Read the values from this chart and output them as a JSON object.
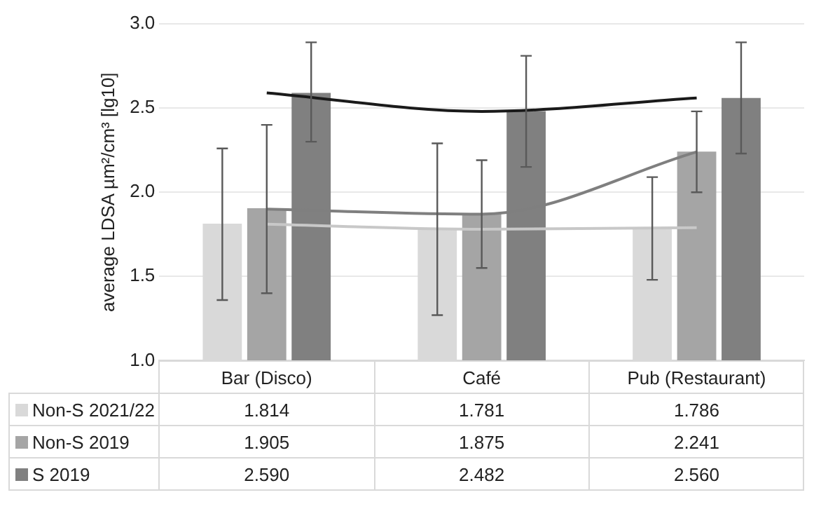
{
  "chart_data": {
    "type": "bar",
    "ylabel": "average LDSA µm²/cm³ [lg10]",
    "categories": [
      "Bar (Disco)",
      "Café",
      "Pub (Restaurant)"
    ],
    "series": [
      {
        "name": "Non-S 2021/22",
        "color": "#d9d9d9",
        "values": [
          1.814,
          1.781,
          1.786
        ],
        "value_labels": [
          "1.814",
          "1.781",
          "1.786"
        ],
        "errors": [
          [
            1.36,
            2.26
          ],
          [
            1.27,
            2.29
          ],
          [
            1.48,
            2.09
          ]
        ]
      },
      {
        "name": "Non-S 2019",
        "color": "#a5a5a5",
        "values": [
          1.905,
          1.875,
          2.241
        ],
        "value_labels": [
          "1.905",
          "1.875",
          "2.241"
        ],
        "errors": [
          [
            1.4,
            2.4
          ],
          [
            1.55,
            2.19
          ],
          [
            2.0,
            2.48
          ]
        ]
      },
      {
        "name": "S 2019",
        "color": "#808080",
        "values": [
          2.59,
          2.482,
          2.56
        ],
        "value_labels": [
          "2.590",
          "2.482",
          "2.560"
        ],
        "errors": [
          [
            2.3,
            2.89
          ],
          [
            2.15,
            2.81
          ],
          [
            2.23,
            2.89
          ]
        ]
      },
      {
        "type": "line",
        "color": "#c8c8c8",
        "values": [
          1.81,
          1.78,
          1.79
        ]
      },
      {
        "type": "line",
        "color": "#7f7f7f",
        "values": [
          1.9,
          1.87,
          2.24
        ]
      },
      {
        "type": "line",
        "color": "#1a1a1a",
        "values": [
          2.59,
          2.48,
          2.56
        ]
      }
    ],
    "ylim": [
      1.0,
      3.0
    ],
    "yticks": [
      {
        "value": 1.0,
        "label": "1.0"
      },
      {
        "value": 1.5,
        "label": "1.5"
      },
      {
        "value": 2.0,
        "label": "2.0"
      },
      {
        "value": 2.5,
        "label": "2.5"
      },
      {
        "value": 3.0,
        "label": "3.0"
      }
    ],
    "grid": "y",
    "legend": "bottom",
    "marker": "none",
    "line_style": "solid"
  }
}
